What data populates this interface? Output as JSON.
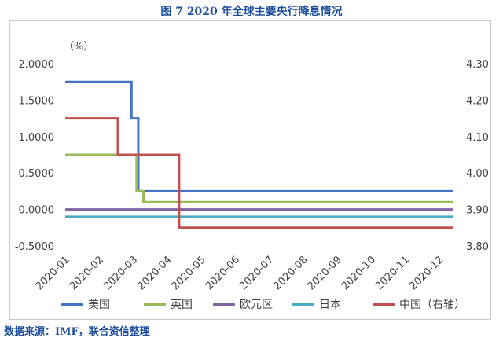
{
  "figure": {
    "title": "图 7   2020 年全球主要央行降息情况",
    "source": "数据来源：IMF，联合资信整理",
    "unit_label": "（%）"
  },
  "chart_data": {
    "type": "line",
    "step": true,
    "title": "2020 年全球主要央行降息情况",
    "unit": "%",
    "x_tick_labels": [
      "2020-01",
      "2020-02",
      "2020-03",
      "2020-04",
      "2020-05",
      "2020-06",
      "2020-07",
      "2020-08",
      "2020-09",
      "2020-10",
      "2020-11",
      "2020-12"
    ],
    "y_left": {
      "range": [
        -0.5,
        2.0
      ],
      "ticks": [
        "2.0000",
        "1.5000",
        "1.0000",
        "0.5000",
        "0.0000",
        "-0.5000"
      ]
    },
    "y_right": {
      "range": [
        3.8,
        4.3
      ],
      "ticks": [
        "4.30",
        "4.20",
        "4.10",
        "4.00",
        "3.90",
        "3.80"
      ]
    },
    "grid": false,
    "legend_position": "bottom",
    "series": [
      {
        "name": "美国",
        "axis": "left",
        "color": "#4472c4",
        "x": [
          0,
          1.95,
          1.95,
          2.15,
          2.15,
          11.4
        ],
        "y": [
          1.75,
          1.75,
          1.25,
          1.25,
          0.25,
          0.25
        ]
      },
      {
        "name": "英国",
        "axis": "left",
        "color": "#9bbb59",
        "x": [
          0,
          2.1,
          2.1,
          2.3,
          2.3,
          11.4
        ],
        "y": [
          0.75,
          0.75,
          0.25,
          0.25,
          0.1,
          0.1
        ]
      },
      {
        "name": "欧元区",
        "axis": "left",
        "color": "#8064a2",
        "x": [
          0,
          11.4
        ],
        "y": [
          0.0,
          0.0
        ]
      },
      {
        "name": "日本",
        "axis": "left",
        "color": "#4bacc6",
        "x": [
          0,
          11.4
        ],
        "y": [
          -0.1,
          -0.1
        ]
      },
      {
        "name": "中国（右轴）",
        "axis": "right",
        "color": "#c0504d",
        "x": [
          0,
          1.55,
          1.55,
          3.35,
          3.35,
          11.4
        ],
        "y": [
          4.15,
          4.15,
          4.05,
          4.05,
          3.85,
          3.85
        ]
      }
    ]
  }
}
